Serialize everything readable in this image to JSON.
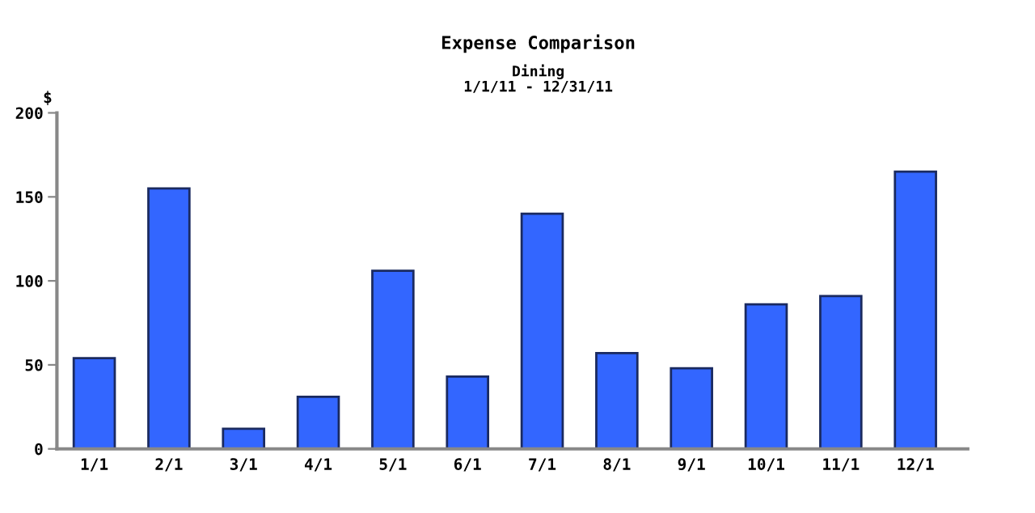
{
  "chart_data": {
    "type": "bar",
    "title": "Expense Comparison",
    "subtitle": "Dining\n1/1/11 - 12/31/11",
    "ylabel": "$",
    "categories": [
      "1/1",
      "2/1",
      "3/1",
      "4/1",
      "5/1",
      "6/1",
      "7/1",
      "8/1",
      "9/1",
      "10/1",
      "11/1",
      "12/1"
    ],
    "values": [
      54,
      155,
      12,
      31,
      106,
      43,
      140,
      57,
      48,
      86,
      91,
      165
    ],
    "color": "#3366ff",
    "ylim": [
      0,
      200
    ],
    "yticks": [
      0,
      50,
      100,
      150,
      200
    ],
    "grid": false,
    "legend": false
  }
}
